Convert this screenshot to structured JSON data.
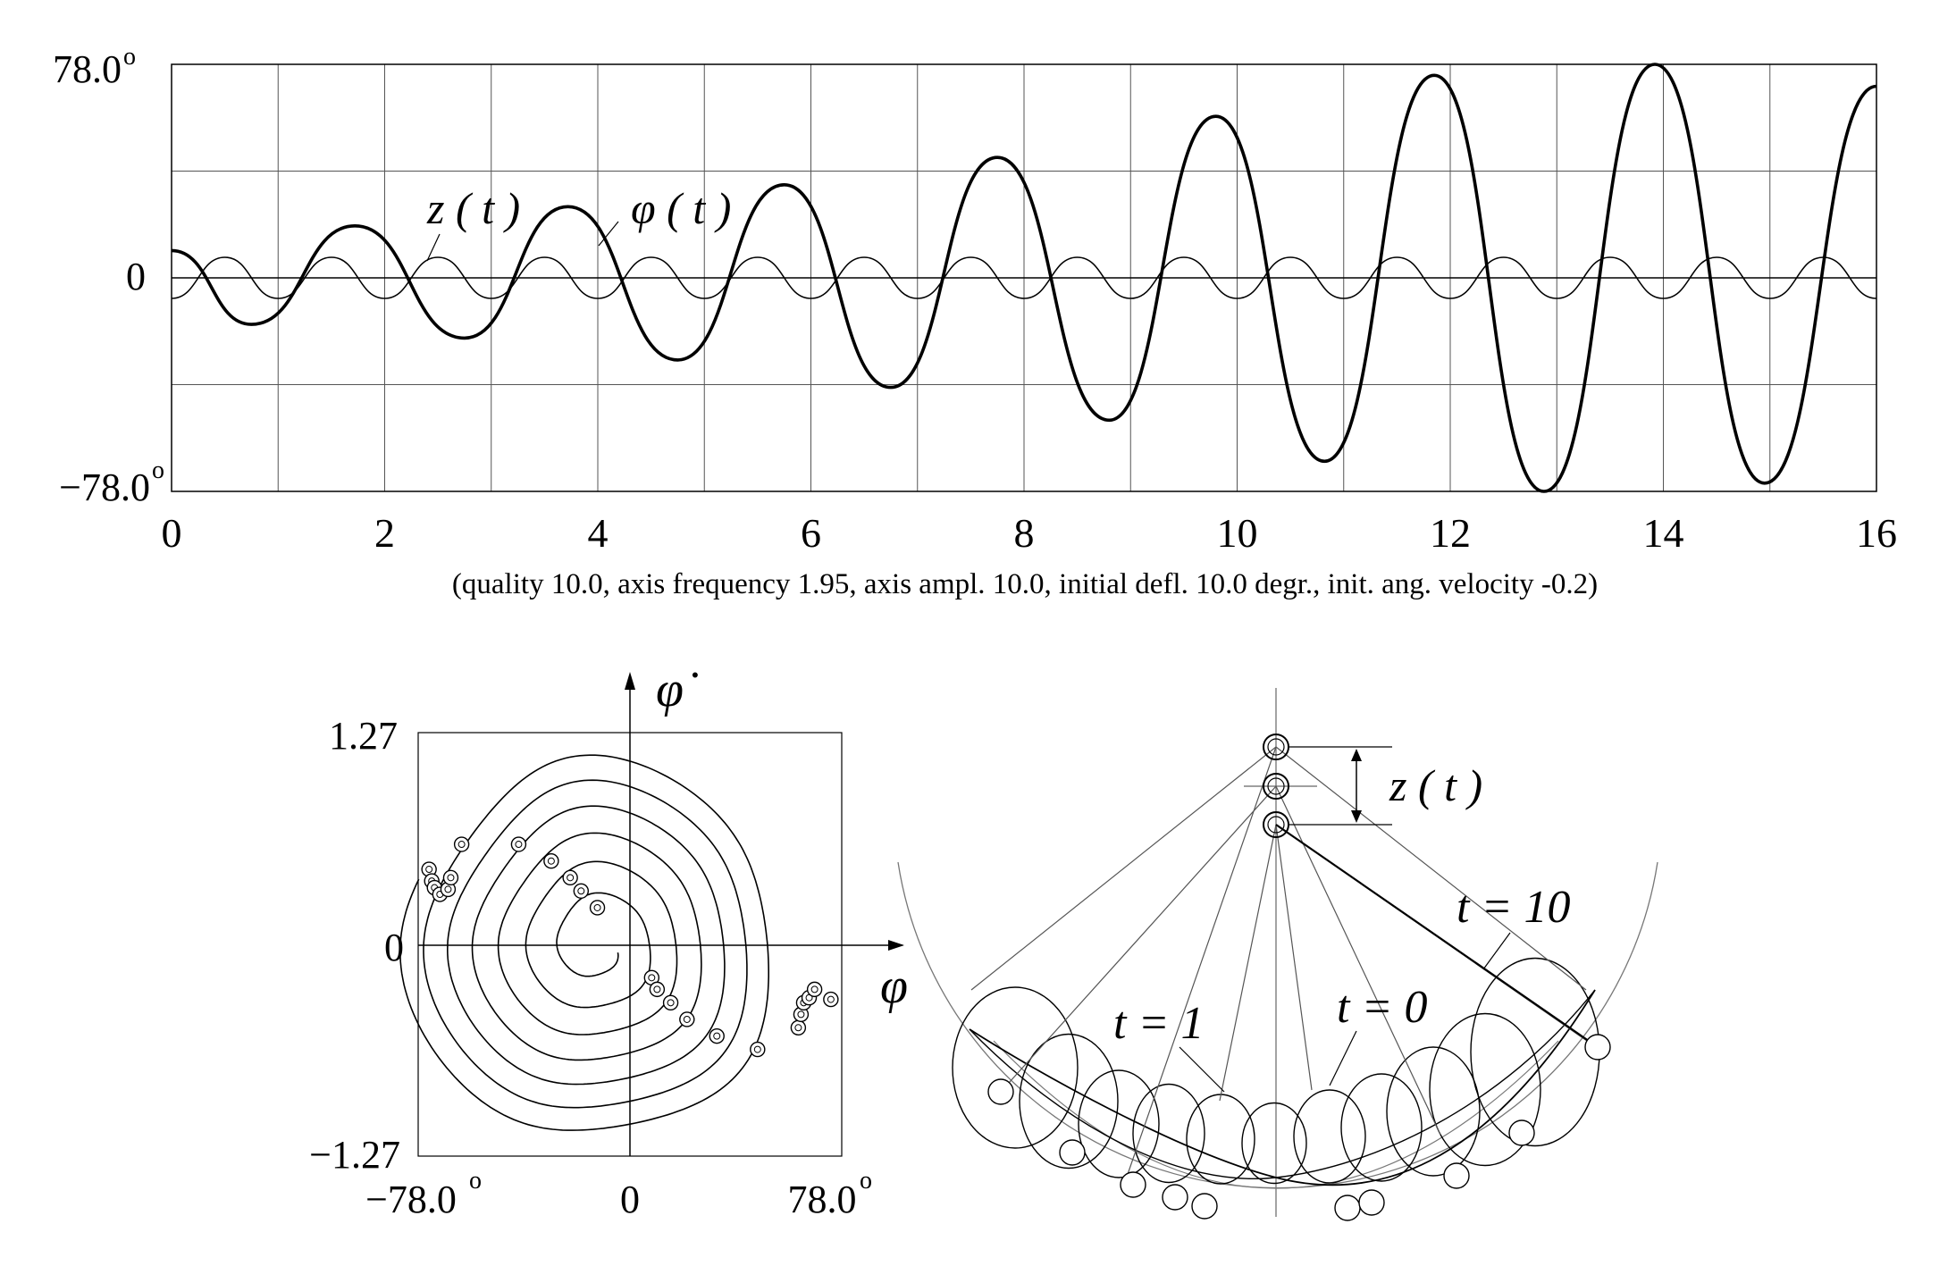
{
  "top_chart": {
    "y_ticks": [
      "78.0",
      "0",
      "−78.0"
    ],
    "y_tick_superscript": "o",
    "x_ticks": [
      "0",
      "2",
      "4",
      "6",
      "8",
      "10",
      "12",
      "14",
      "16"
    ],
    "caption": "(quality 10.0,  axis frequency 1.95, axis ampl. 10.0,  initial defl. 10.0 degr.,  init. ang. velocity -0.2)",
    "label_z": "z ( t )",
    "label_phi": "φ ( t )"
  },
  "phase_chart": {
    "y_axis_symbol": "φ̇",
    "x_axis_symbol": "φ",
    "y_ticks": [
      "1.27",
      "0",
      "−1.27"
    ],
    "x_ticks": [
      "−78.0",
      "0",
      "78.0"
    ],
    "tick_superscript": "o"
  },
  "pendulum_diagram": {
    "label_z": "z ( t )",
    "label_t10": "t = 10",
    "label_t1": "t = 1",
    "label_t0": "t = 0"
  },
  "chart_data": [
    {
      "type": "line",
      "x_range": [
        0,
        16
      ],
      "y_range": [
        -78.0,
        78.0
      ],
      "y_unit": "degrees",
      "grid": true,
      "series": [
        {
          "name": "φ(t)",
          "x": [
            0,
            0.75,
            1.72,
            2.75,
            3.72,
            4.75,
            5.75,
            6.75,
            7.75,
            8.8,
            9.8,
            10.82,
            11.85,
            12.88,
            13.92,
            14.95,
            16
          ],
          "y": [
            10,
            -17,
            19,
            -22,
            26,
            -30,
            34,
            -40,
            44,
            -52,
            59,
            -67,
            74,
            -78,
            78,
            -75,
            70
          ]
        },
        {
          "name": "z(t)",
          "amplitude": 7.5,
          "x": [
            0,
            0.5,
            1.0,
            1.5,
            2.0,
            2.5,
            3.0,
            3.5,
            4.0,
            4.5,
            5.0,
            5.5,
            6.0,
            6.5,
            7.0,
            7.5,
            8.0,
            8.5,
            9.0,
            9.5,
            10.0,
            10.5,
            11.0,
            11.5,
            12.0,
            12.5,
            13.0,
            13.5,
            14.0,
            14.5,
            15.0,
            15.5,
            16.0
          ],
          "y": [
            -7.5,
            7.5,
            -7.5,
            7.5,
            -7.5,
            7.5,
            -7.5,
            7.5,
            -7.5,
            7.5,
            -7.5,
            7.5,
            -7.5,
            7.5,
            -7.5,
            7.5,
            -7.5,
            7.5,
            -7.5,
            7.5,
            -7.5,
            7.5,
            -7.5,
            7.5,
            -7.5,
            7.5,
            -7.5,
            7.5,
            -7.5,
            7.5,
            -7.5,
            7.5,
            -7.5
          ]
        }
      ]
    },
    {
      "type": "line",
      "x_range": [
        -78.0,
        78.0
      ],
      "y_range": [
        -1.27,
        1.27
      ],
      "x_unit": "degrees",
      "grid": false,
      "spiral": {
        "start": [
          10,
          -0.2
        ],
        "turns": 6.5,
        "amp_start": 8,
        "amp_end": 70,
        "vel_max": 1.2
      },
      "markers": [
        [
          -74,
          0.45
        ],
        [
          -73,
          0.38
        ],
        [
          -72,
          0.34
        ],
        [
          -70,
          0.3
        ],
        [
          -67,
          0.33
        ],
        [
          -66,
          0.4
        ],
        [
          -62,
          0.6
        ],
        [
          -41,
          0.6
        ],
        [
          -29,
          0.5
        ],
        [
          -22,
          0.4
        ],
        [
          -18,
          0.32
        ],
        [
          -12,
          0.22
        ],
        [
          8,
          -0.2
        ],
        [
          10,
          -0.27
        ],
        [
          15,
          -0.35
        ],
        [
          21,
          -0.45
        ],
        [
          32,
          -0.55
        ],
        [
          47,
          -0.63
        ],
        [
          62,
          -0.5
        ],
        [
          63,
          -0.42
        ],
        [
          64,
          -0.35
        ],
        [
          66,
          -0.32
        ],
        [
          68,
          -0.27
        ],
        [
          74,
          -0.33
        ]
      ]
    }
  ]
}
